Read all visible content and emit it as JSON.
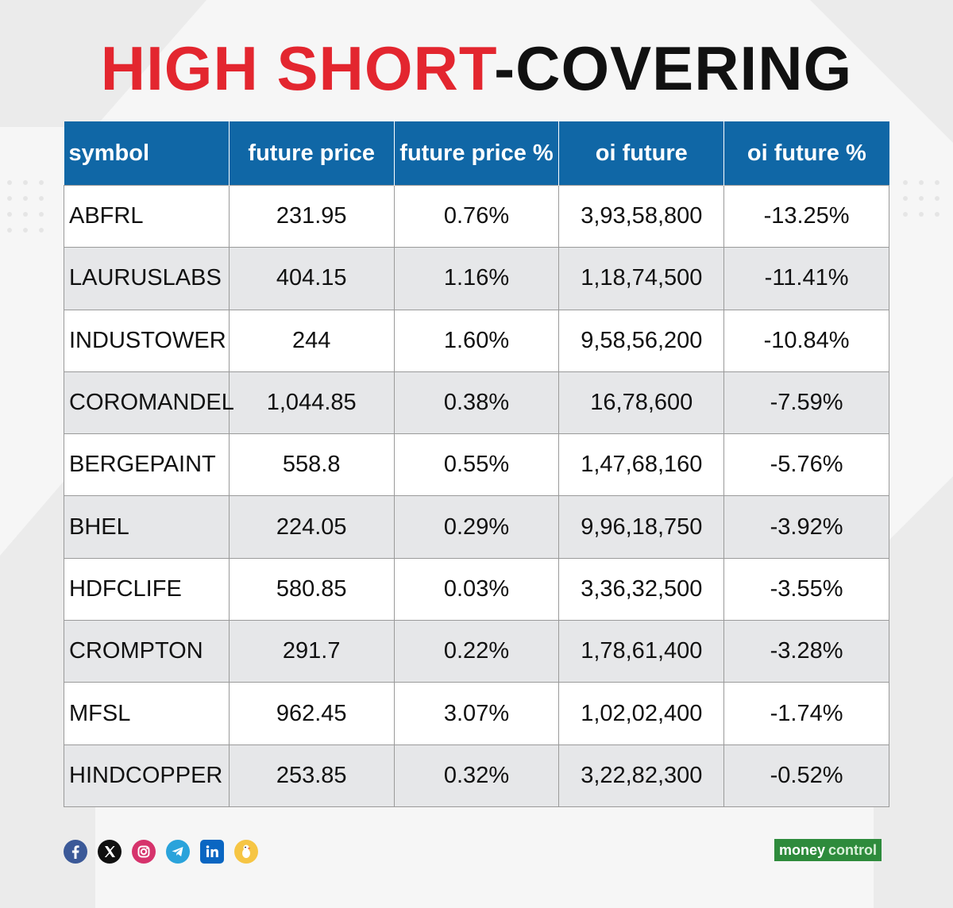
{
  "title": {
    "part1": "HIGH SHORT",
    "part2": "-COVERING"
  },
  "colors": {
    "accent_red": "#e3262f",
    "header_blue": "#1067a6",
    "row_alt": "#e6e7e9",
    "brand_green": "#2e8b3c"
  },
  "table": {
    "columns": [
      "symbol",
      "future price",
      "future price %",
      "oi future",
      "oi future %"
    ],
    "rows": [
      [
        "ABFRL",
        "231.95",
        "0.76%",
        "3,93,58,800",
        "-13.25%"
      ],
      [
        "LAURUSLABS",
        "404.15",
        "1.16%",
        "1,18,74,500",
        "-11.41%"
      ],
      [
        "INDUSTOWER",
        "244",
        "1.60%",
        "9,58,56,200",
        "-10.84%"
      ],
      [
        "COROMANDEL",
        "1,044.85",
        "0.38%",
        "16,78,600",
        "-7.59%"
      ],
      [
        "BERGEPAINT",
        "558.8",
        "0.55%",
        "1,47,68,160",
        "-5.76%"
      ],
      [
        "BHEL",
        "224.05",
        "0.29%",
        "9,96,18,750",
        "-3.92%"
      ],
      [
        "HDFCLIFE",
        "580.85",
        "0.03%",
        "3,36,32,500",
        "-3.55%"
      ],
      [
        "CROMPTON",
        "291.7",
        "0.22%",
        "1,78,61,400",
        "-3.28%"
      ],
      [
        "MFSL",
        "962.45",
        "3.07%",
        "1,02,02,400",
        "-1.74%"
      ],
      [
        "HINDCOPPER",
        "253.85",
        "0.32%",
        "3,22,82,300",
        "-0.52%"
      ]
    ]
  },
  "social_icons": [
    "facebook-icon",
    "x-icon",
    "instagram-icon",
    "telegram-icon",
    "linkedin-icon",
    "koo-icon"
  ],
  "brand": {
    "part1": "money",
    "part2": "control"
  }
}
